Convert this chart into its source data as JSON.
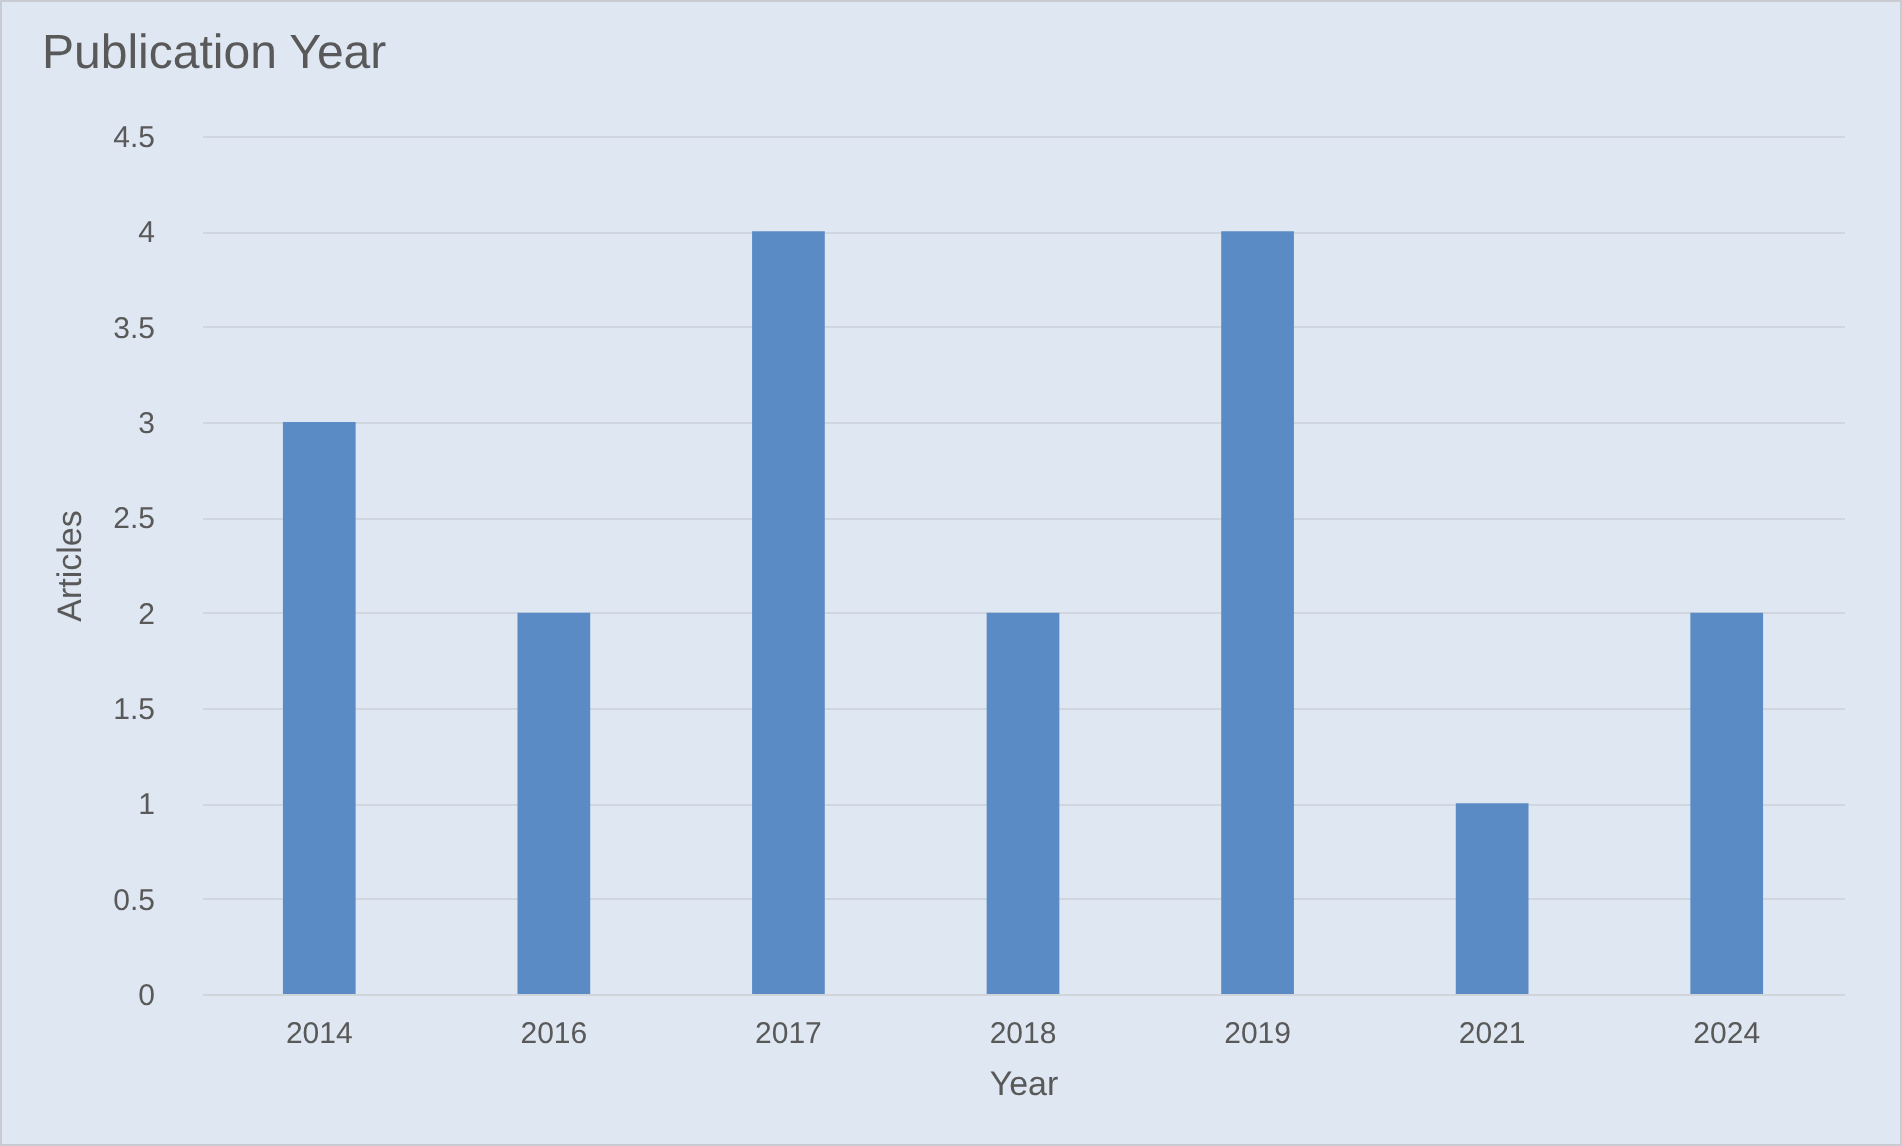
{
  "chart_data": {
    "type": "bar",
    "title": "Publication Year",
    "xlabel": "Year",
    "ylabel": "Articles",
    "categories": [
      "2014",
      "2016",
      "2017",
      "2018",
      "2019",
      "2021",
      "2024"
    ],
    "values": [
      3,
      2,
      4,
      2,
      4,
      1,
      2
    ],
    "color": "#5b8bc5",
    "ylim": [
      0,
      4.5
    ],
    "yticks": [
      0,
      0.5,
      1,
      1.5,
      2,
      2.5,
      3,
      3.5,
      4,
      4.5
    ],
    "grid": "y"
  }
}
